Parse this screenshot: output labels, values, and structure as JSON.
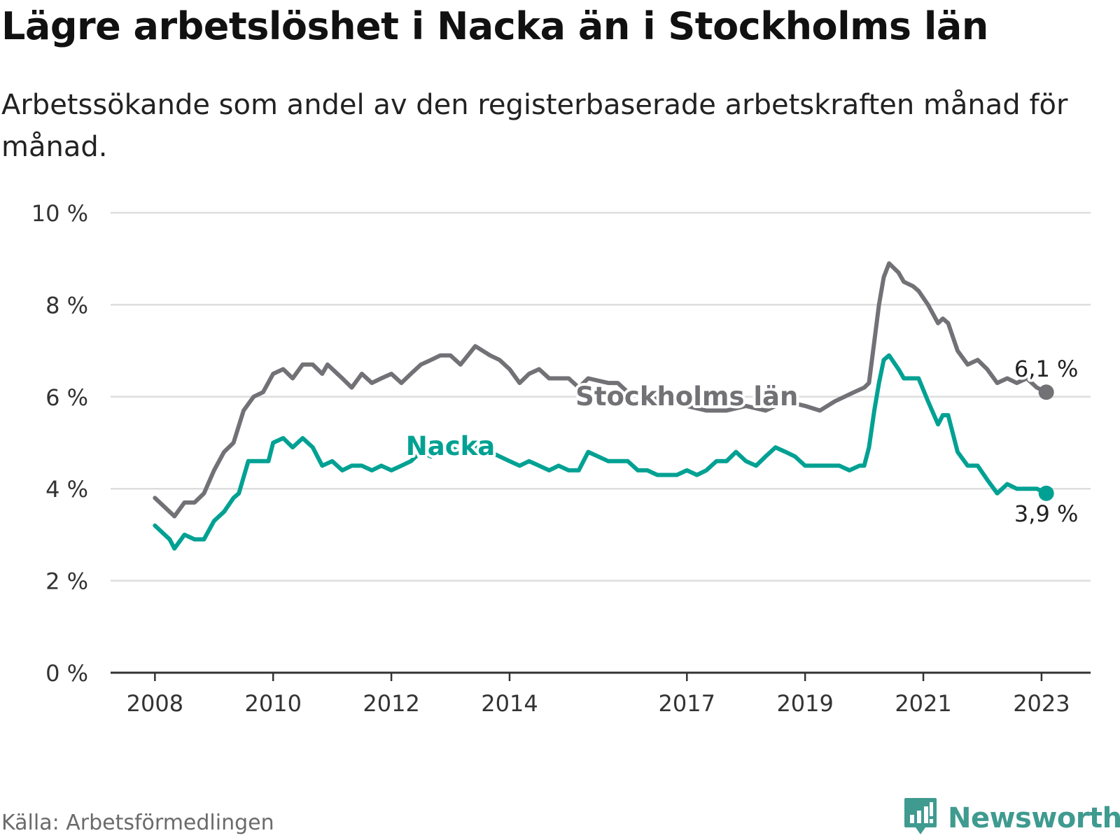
{
  "title": "Lägre arbetslöshet i Nacka än i Stockholms län",
  "subtitle": "Arbetssökande som andel av den registerbaserade arbetskraften månad för månad.",
  "source": "Källa: Arbetsförmedlingen",
  "brand": {
    "name": "Newsworthy",
    "icon": "newsworthy-logo-icon"
  },
  "colors": {
    "stockholm": "#727176",
    "nacka": "#00a193",
    "grid": "#dddddd",
    "axis": "#333333",
    "brand": "#3f9a8f"
  },
  "chart_data": {
    "type": "line",
    "title": "Lägre arbetslöshet i Nacka än i Stockholms län",
    "xlabel": "",
    "ylabel": "",
    "ylim": [
      0,
      10
    ],
    "y_ticks": [
      0,
      2,
      4,
      6,
      8,
      10
    ],
    "y_tick_labels": [
      "0 %",
      "2 %",
      "4 %",
      "6 %",
      "8 %",
      "10 %"
    ],
    "x_range": [
      2007.25,
      2023.83
    ],
    "x_ticks": [
      2008,
      2010,
      2012,
      2014,
      2017,
      2019,
      2021,
      2023
    ],
    "x_tick_labels": [
      "2008",
      "2010",
      "2012",
      "2014",
      "2017",
      "2019",
      "2021",
      "2023"
    ],
    "grid": true,
    "series": [
      {
        "name": "Stockholms län",
        "label": "Stockholms län",
        "last_value_label": "6,1 %",
        "points": [
          [
            2008.0,
            3.8
          ],
          [
            2008.33,
            3.4
          ],
          [
            2008.5,
            3.7
          ],
          [
            2008.67,
            3.7
          ],
          [
            2008.83,
            3.9
          ],
          [
            2009.0,
            4.4
          ],
          [
            2009.17,
            4.8
          ],
          [
            2009.33,
            5.0
          ],
          [
            2009.5,
            5.7
          ],
          [
            2009.67,
            6.0
          ],
          [
            2009.83,
            6.1
          ],
          [
            2010.0,
            6.5
          ],
          [
            2010.17,
            6.6
          ],
          [
            2010.33,
            6.4
          ],
          [
            2010.5,
            6.7
          ],
          [
            2010.67,
            6.7
          ],
          [
            2010.83,
            6.5
          ],
          [
            2010.92,
            6.7
          ],
          [
            2011.17,
            6.4
          ],
          [
            2011.33,
            6.2
          ],
          [
            2011.5,
            6.5
          ],
          [
            2011.67,
            6.3
          ],
          [
            2011.83,
            6.4
          ],
          [
            2012.0,
            6.5
          ],
          [
            2012.17,
            6.3
          ],
          [
            2012.33,
            6.5
          ],
          [
            2012.5,
            6.7
          ],
          [
            2012.67,
            6.8
          ],
          [
            2012.83,
            6.9
          ],
          [
            2013.0,
            6.9
          ],
          [
            2013.17,
            6.7
          ],
          [
            2013.42,
            7.1
          ],
          [
            2013.67,
            6.9
          ],
          [
            2013.83,
            6.8
          ],
          [
            2014.0,
            6.6
          ],
          [
            2014.17,
            6.3
          ],
          [
            2014.33,
            6.5
          ],
          [
            2014.5,
            6.6
          ],
          [
            2014.67,
            6.4
          ],
          [
            2015.0,
            6.4
          ],
          [
            2015.17,
            6.2
          ],
          [
            2015.33,
            6.4
          ],
          [
            2015.67,
            6.3
          ],
          [
            2015.83,
            6.3
          ],
          [
            2016.0,
            6.1
          ],
          [
            2016.33,
            6.0
          ],
          [
            2016.67,
            5.9
          ],
          [
            2017.0,
            5.8
          ],
          [
            2017.33,
            5.7
          ],
          [
            2017.67,
            5.7
          ],
          [
            2018.0,
            5.8
          ],
          [
            2018.33,
            5.7
          ],
          [
            2018.67,
            5.9
          ],
          [
            2019.0,
            5.8
          ],
          [
            2019.25,
            5.7
          ],
          [
            2019.5,
            5.9
          ],
          [
            2019.83,
            6.1
          ],
          [
            2020.0,
            6.2
          ],
          [
            2020.08,
            6.3
          ],
          [
            2020.17,
            7.2
          ],
          [
            2020.25,
            8.0
          ],
          [
            2020.33,
            8.6
          ],
          [
            2020.42,
            8.9
          ],
          [
            2020.58,
            8.7
          ],
          [
            2020.67,
            8.5
          ],
          [
            2020.83,
            8.4
          ],
          [
            2020.92,
            8.3
          ],
          [
            2021.08,
            8.0
          ],
          [
            2021.25,
            7.6
          ],
          [
            2021.33,
            7.7
          ],
          [
            2021.42,
            7.6
          ],
          [
            2021.58,
            7.0
          ],
          [
            2021.75,
            6.7
          ],
          [
            2021.92,
            6.8
          ],
          [
            2022.08,
            6.6
          ],
          [
            2022.25,
            6.3
          ],
          [
            2022.42,
            6.4
          ],
          [
            2022.58,
            6.3
          ],
          [
            2022.75,
            6.4
          ],
          [
            2022.92,
            6.2
          ],
          [
            2023.08,
            6.1
          ]
        ]
      },
      {
        "name": "Nacka",
        "label": "Nacka",
        "last_value_label": "3,9 %",
        "points": [
          [
            2008.0,
            3.2
          ],
          [
            2008.25,
            2.9
          ],
          [
            2008.33,
            2.7
          ],
          [
            2008.5,
            3.0
          ],
          [
            2008.67,
            2.9
          ],
          [
            2008.83,
            2.9
          ],
          [
            2009.0,
            3.3
          ],
          [
            2009.17,
            3.5
          ],
          [
            2009.33,
            3.8
          ],
          [
            2009.42,
            3.9
          ],
          [
            2009.58,
            4.6
          ],
          [
            2009.75,
            4.6
          ],
          [
            2009.92,
            4.6
          ],
          [
            2010.0,
            5.0
          ],
          [
            2010.17,
            5.1
          ],
          [
            2010.33,
            4.9
          ],
          [
            2010.5,
            5.1
          ],
          [
            2010.67,
            4.9
          ],
          [
            2010.83,
            4.5
          ],
          [
            2011.0,
            4.6
          ],
          [
            2011.17,
            4.4
          ],
          [
            2011.33,
            4.5
          ],
          [
            2011.5,
            4.5
          ],
          [
            2011.67,
            4.4
          ],
          [
            2011.83,
            4.5
          ],
          [
            2012.0,
            4.4
          ],
          [
            2012.17,
            4.5
          ],
          [
            2012.33,
            4.6
          ],
          [
            2012.5,
            4.8
          ],
          [
            2012.67,
            4.7
          ],
          [
            2012.83,
            4.8
          ],
          [
            2013.0,
            4.9
          ],
          [
            2013.17,
            4.8
          ],
          [
            2013.42,
            4.9
          ],
          [
            2013.67,
            4.8
          ],
          [
            2014.0,
            4.6
          ],
          [
            2014.17,
            4.5
          ],
          [
            2014.33,
            4.6
          ],
          [
            2014.5,
            4.5
          ],
          [
            2014.67,
            4.4
          ],
          [
            2014.83,
            4.5
          ],
          [
            2015.0,
            4.4
          ],
          [
            2015.17,
            4.4
          ],
          [
            2015.33,
            4.8
          ],
          [
            2015.5,
            4.7
          ],
          [
            2015.67,
            4.6
          ],
          [
            2015.83,
            4.6
          ],
          [
            2016.0,
            4.6
          ],
          [
            2016.17,
            4.4
          ],
          [
            2016.33,
            4.4
          ],
          [
            2016.5,
            4.3
          ],
          [
            2016.67,
            4.3
          ],
          [
            2016.83,
            4.3
          ],
          [
            2017.0,
            4.4
          ],
          [
            2017.17,
            4.3
          ],
          [
            2017.33,
            4.4
          ],
          [
            2017.5,
            4.6
          ],
          [
            2017.67,
            4.6
          ],
          [
            2017.83,
            4.8
          ],
          [
            2018.0,
            4.6
          ],
          [
            2018.17,
            4.5
          ],
          [
            2018.33,
            4.7
          ],
          [
            2018.5,
            4.9
          ],
          [
            2018.67,
            4.8
          ],
          [
            2018.83,
            4.7
          ],
          [
            2019.0,
            4.5
          ],
          [
            2019.33,
            4.5
          ],
          [
            2019.58,
            4.5
          ],
          [
            2019.75,
            4.4
          ],
          [
            2019.92,
            4.5
          ],
          [
            2020.0,
            4.5
          ],
          [
            2020.08,
            4.9
          ],
          [
            2020.17,
            5.7
          ],
          [
            2020.25,
            6.3
          ],
          [
            2020.33,
            6.8
          ],
          [
            2020.42,
            6.9
          ],
          [
            2020.58,
            6.6
          ],
          [
            2020.67,
            6.4
          ],
          [
            2020.83,
            6.4
          ],
          [
            2020.92,
            6.4
          ],
          [
            2021.08,
            5.9
          ],
          [
            2021.25,
            5.4
          ],
          [
            2021.33,
            5.6
          ],
          [
            2021.42,
            5.6
          ],
          [
            2021.58,
            4.8
          ],
          [
            2021.75,
            4.5
          ],
          [
            2021.92,
            4.5
          ],
          [
            2022.08,
            4.2
          ],
          [
            2022.25,
            3.9
          ],
          [
            2022.42,
            4.1
          ],
          [
            2022.58,
            4.0
          ],
          [
            2022.75,
            4.0
          ],
          [
            2022.92,
            4.0
          ],
          [
            2023.08,
            3.9
          ]
        ]
      }
    ]
  }
}
